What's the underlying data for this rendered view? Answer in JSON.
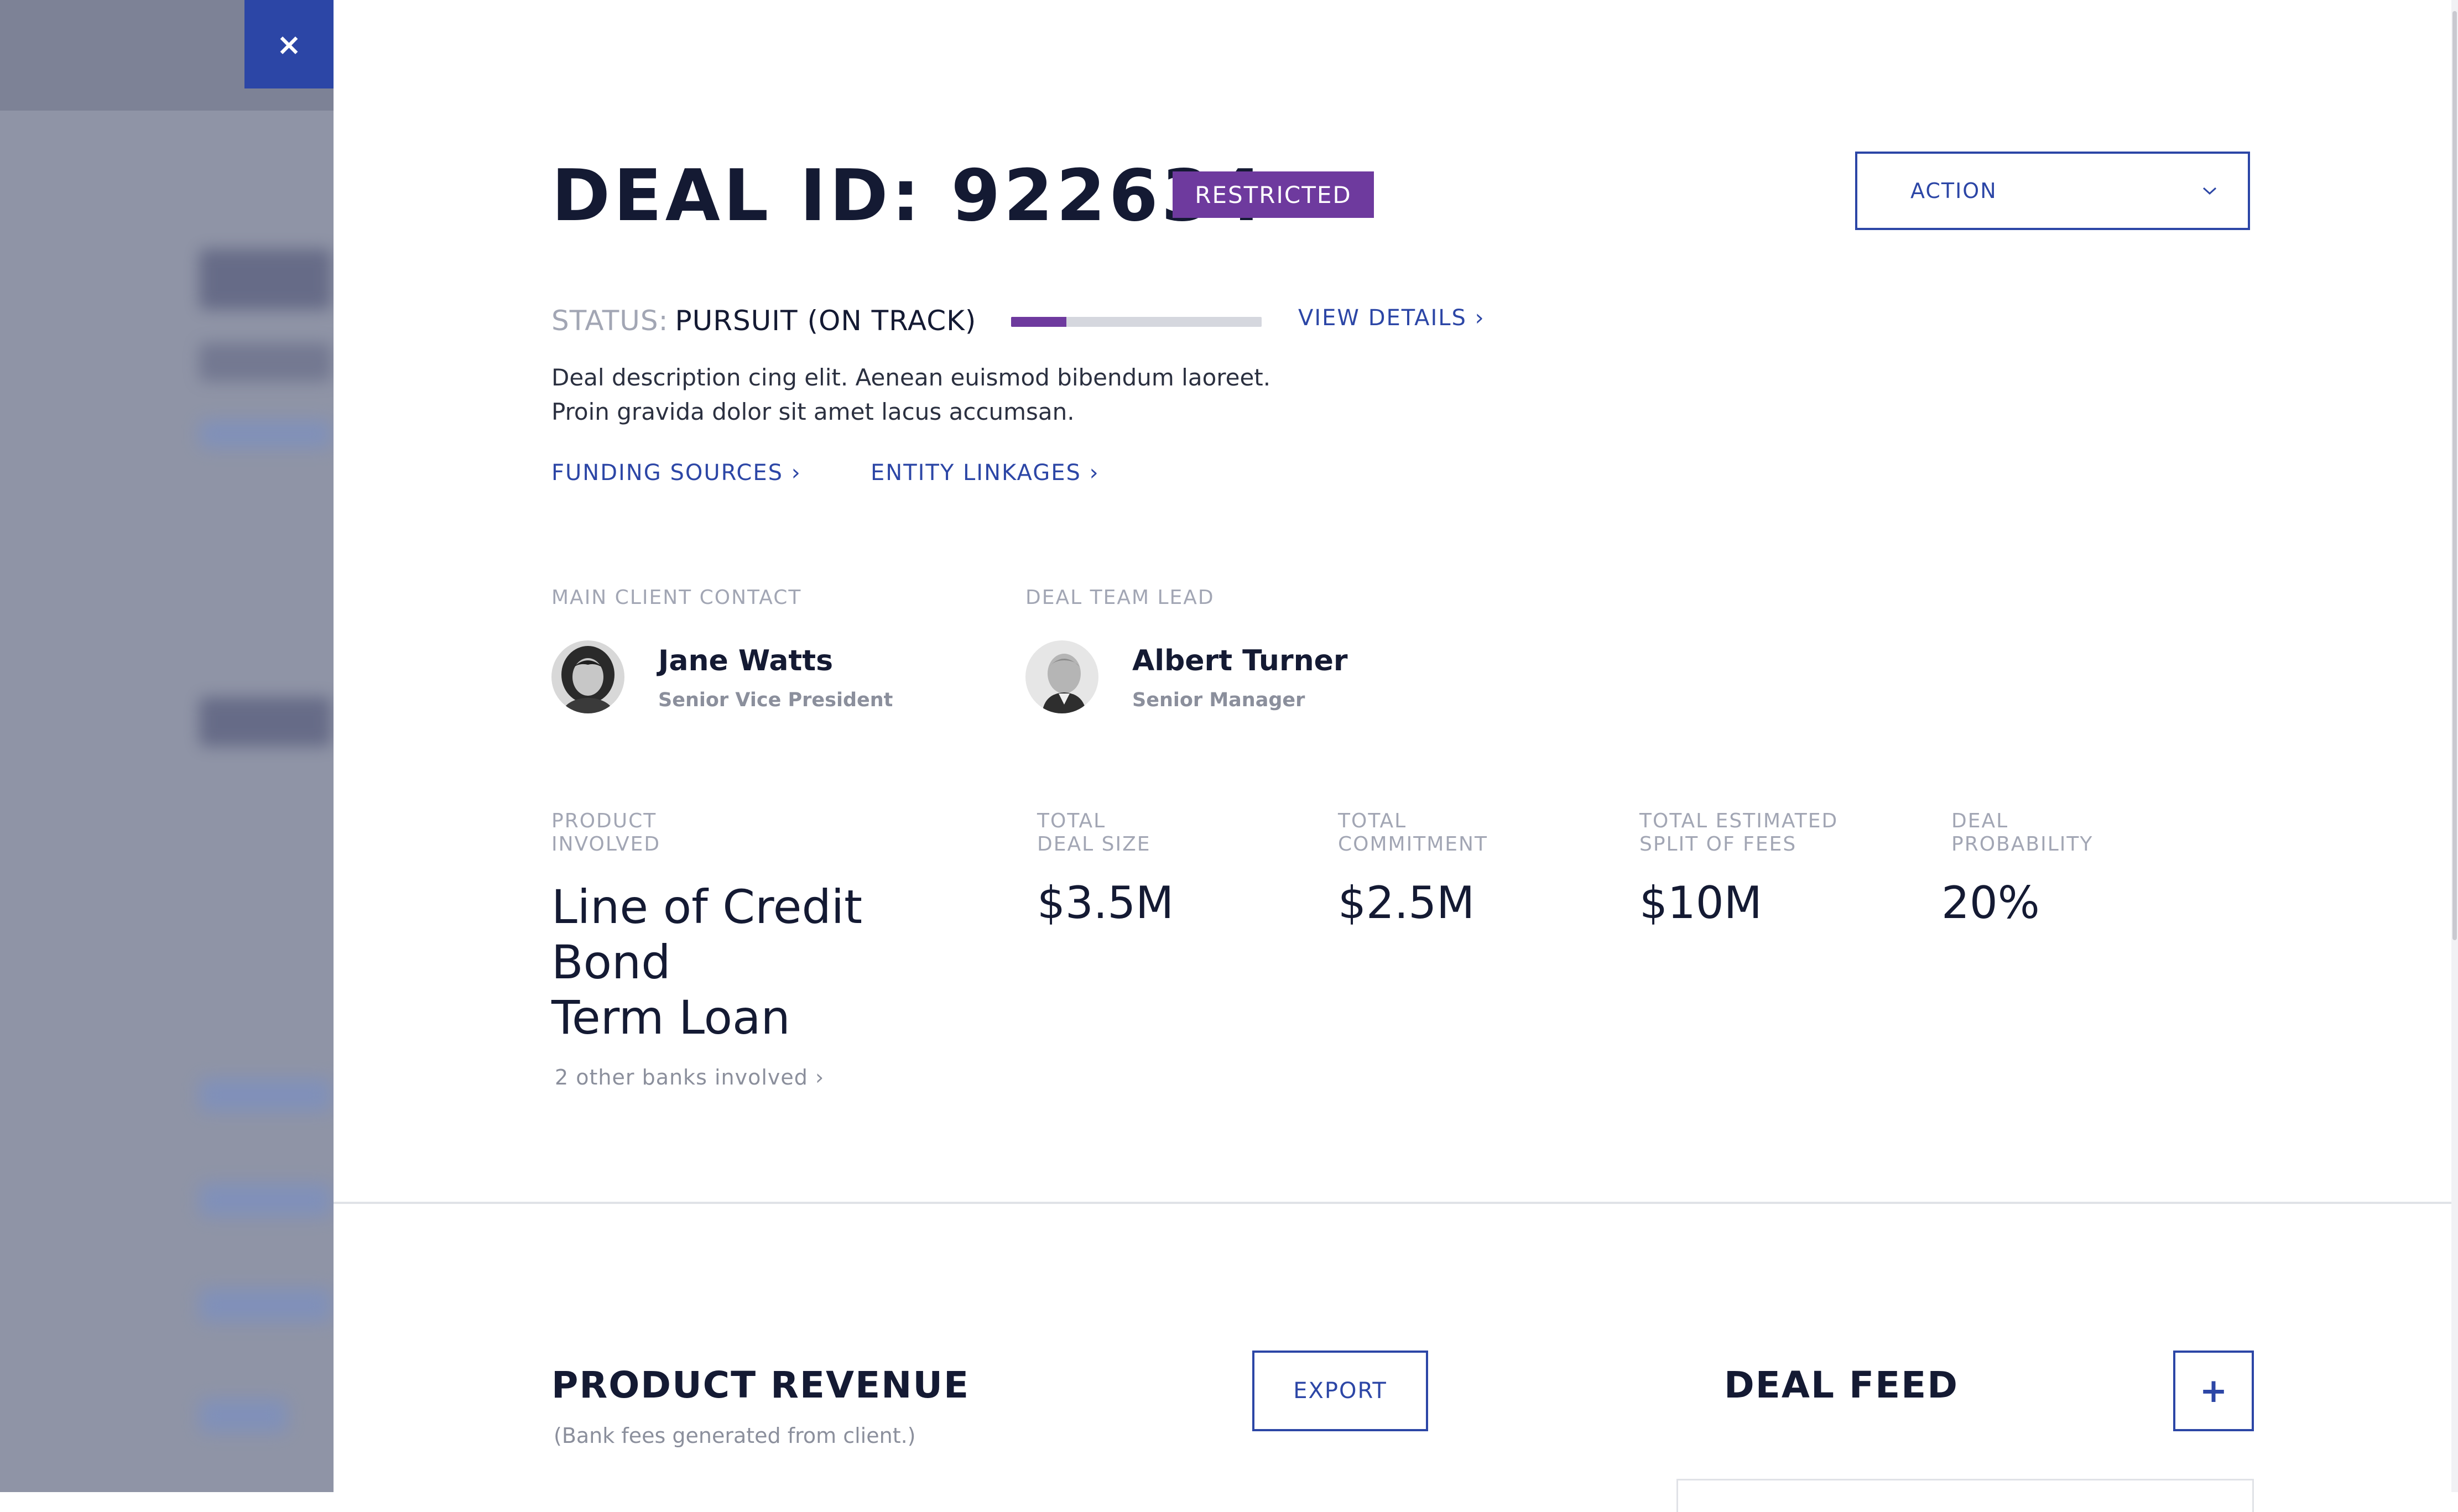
{
  "close_button": {
    "icon": "close-icon",
    "glyph": "×"
  },
  "deal": {
    "title": "DEAL ID: 922634",
    "badge": "RESTRICTED",
    "status_label": "STATUS:",
    "status_value": "PURSUIT (ON TRACK)",
    "progress_fraction": 0.22,
    "view_details": "VIEW DETAILS",
    "description_lines": [
      "Deal description cing elit. Aenean euismod bibendum laoreet.",
      "Proin gravida dolor sit amet lacus accumsan."
    ],
    "links": {
      "funding_sources": "FUNDING SOURCES",
      "entity_linkages": "ENTITY LINKAGES"
    }
  },
  "action_dropdown": {
    "label": "ACTION",
    "icon": "chevron-down-icon"
  },
  "contacts": {
    "client": {
      "section_label": "MAIN CLIENT CONTACT",
      "name": "Jane Watts",
      "role": "Senior Vice President"
    },
    "lead": {
      "section_label": "DEAL TEAM LEAD",
      "name": "Albert Turner",
      "role": "Senior Manager"
    }
  },
  "metrics": {
    "product": {
      "label_line1": "PRODUCT",
      "label_line2": "INVOLVED",
      "items": [
        "Line of Credit",
        "Bond",
        "Term Loan"
      ],
      "other_banks": "2 other banks involved"
    },
    "deal_size": {
      "label_line1": "TOTAL",
      "label_line2": "DEAL SIZE",
      "value": "$3.5M"
    },
    "commitment": {
      "label_line1": "TOTAL",
      "label_line2": "COMMITMENT",
      "value": "$2.5M"
    },
    "fees": {
      "label_line1": "TOTAL ESTIMATED",
      "label_line2": "SPLIT OF FEES",
      "value": "$10M"
    },
    "probability": {
      "label_line1": "DEAL",
      "label_line2": "PROBABILITY",
      "value": "20%"
    }
  },
  "product_revenue": {
    "title": "PRODUCT REVENUE",
    "subtitle": "(Bank fees generated from client.)",
    "export_label": "EXPORT"
  },
  "deal_feed": {
    "title": "DEAL FEED",
    "add_icon": "plus-icon",
    "add_glyph": "+"
  },
  "colors": {
    "accent": "#2c46a6",
    "badge": "#6e3a9e",
    "text": "#141a33",
    "muted": "#a2a6b4"
  }
}
